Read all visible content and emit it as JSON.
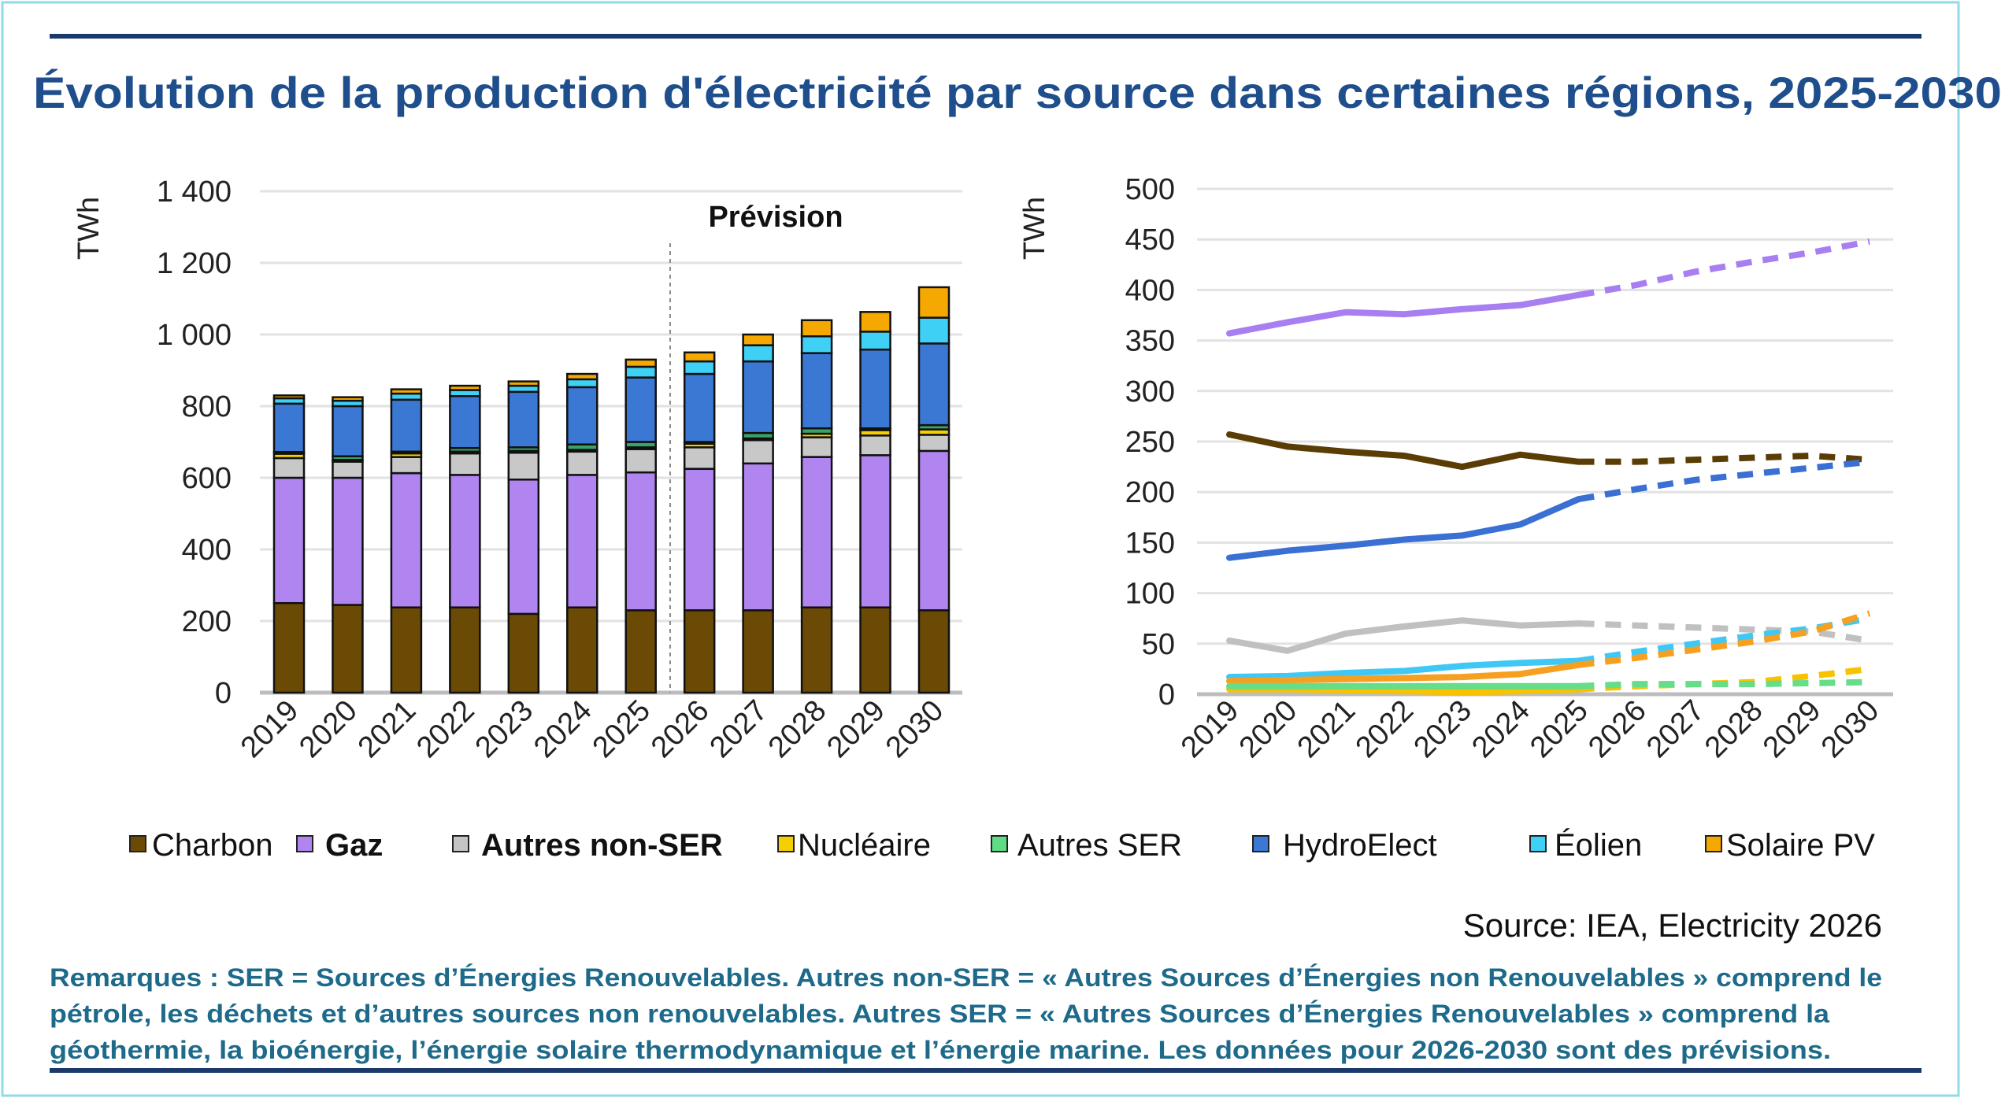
{
  "title": "Évolution de la production d'électricité par source dans certaines régions, 2025-2030",
  "forecast_label": "Prévision",
  "source": "Source: IEA, Electricity 2026",
  "notes": [
    "Remarques : SER = Sources d’Énergies Renouvelables. Autres non-SER = « Autres Sources d’Énergies non Renouvelables » comprend le",
    "pétrole, les déchets et d’autres sources non renouvelables. Autres SER = « Autres Sources d’Énergies Renouvelables » comprend la",
    "géothermie, la bioénergie, l’énergie solaire thermodynamique et l’énergie marine. Les données pour 2026-2030  sont des prévisions."
  ],
  "legend": [
    {
      "key": "charbon",
      "label": "Charbon",
      "color": "#6b4a05"
    },
    {
      "key": "gaz",
      "label": "Gaz",
      "color": "#b085f0"
    },
    {
      "key": "autres_non_ser",
      "label": "Autres non-SER",
      "color": "#c4c4c4"
    },
    {
      "key": "nucleaire",
      "label": "Nucléaire",
      "color": "#f5d000"
    },
    {
      "key": "autres_ser",
      "label": "Autres SER",
      "color": "#5fdc86"
    },
    {
      "key": "hydro",
      "label": "HydroElect",
      "color": "#3a78d4"
    },
    {
      "key": "eolien",
      "label": "Éolien",
      "color": "#3fd0f5"
    },
    {
      "key": "solaire",
      "label": "Solaire PV",
      "color": "#f5a800"
    }
  ],
  "chart_data": [
    {
      "type": "bar",
      "stacked": true,
      "ylabel": "TWh",
      "ylim": [
        0,
        1400
      ],
      "yticks": [
        "0",
        "200",
        "400",
        "600",
        "800",
        "1 000",
        "1 200",
        "1 400"
      ],
      "ytick_values": [
        0,
        200,
        400,
        600,
        800,
        1000,
        1200,
        1400
      ],
      "categories": [
        "2019",
        "2020",
        "2021",
        "2022",
        "2023",
        "2024",
        "2025",
        "2026",
        "2027",
        "2028",
        "2029",
        "2030"
      ],
      "forecast_start": "2026",
      "series": [
        {
          "name": "Charbon",
          "key": "charbon",
          "color": "#6b4a05",
          "values": [
            250,
            245,
            238,
            238,
            220,
            238,
            230,
            230,
            230,
            238,
            238,
            230
          ]
        },
        {
          "name": "Gaz",
          "key": "gaz",
          "color": "#b085f0",
          "values": [
            350,
            355,
            375,
            370,
            375,
            370,
            385,
            395,
            410,
            420,
            425,
            445
          ]
        },
        {
          "name": "Autres non-SER",
          "key": "autres_non_ser",
          "color": "#c8c8c8",
          "values": [
            55,
            45,
            45,
            60,
            75,
            65,
            65,
            60,
            65,
            55,
            55,
            45
          ]
        },
        {
          "name": "Nucléaire",
          "key": "nucleaire",
          "color": "#f5d000",
          "values": [
            12,
            5,
            10,
            5,
            5,
            5,
            5,
            10,
            5,
            10,
            15,
            15
          ]
        },
        {
          "name": "Autres SER",
          "key": "autres_ser",
          "color": "#3aa36a",
          "values": [
            5,
            10,
            5,
            10,
            10,
            15,
            15,
            5,
            15,
            15,
            5,
            12
          ]
        },
        {
          "name": "HydroElect",
          "key": "hydro",
          "color": "#3a78d4",
          "values": [
            135,
            140,
            145,
            145,
            155,
            160,
            180,
            190,
            200,
            210,
            220,
            228
          ]
        },
        {
          "name": "Éolien",
          "key": "eolien",
          "color": "#3fd0f5",
          "values": [
            15,
            15,
            17,
            17,
            17,
            22,
            30,
            35,
            45,
            47,
            50,
            72
          ]
        },
        {
          "name": "Solaire PV",
          "key": "solaire",
          "color": "#f5a800",
          "values": [
            8,
            10,
            12,
            12,
            12,
            15,
            20,
            25,
            30,
            45,
            55,
            85
          ]
        }
      ]
    },
    {
      "type": "line",
      "ylabel": "TWh",
      "ylim": [
        0,
        500
      ],
      "yticks": [
        "0",
        "50",
        "100",
        "150",
        "200",
        "250",
        "300",
        "350",
        "400",
        "450",
        "500"
      ],
      "ytick_values": [
        0,
        50,
        100,
        150,
        200,
        250,
        300,
        350,
        400,
        450,
        500
      ],
      "categories": [
        "2019",
        "2020",
        "2021",
        "2022",
        "2023",
        "2024",
        "2025",
        "2026",
        "2027",
        "2028",
        "2029",
        "2030"
      ],
      "forecast_start": "2025",
      "forecast_style": "dashed",
      "series": [
        {
          "name": "Gaz",
          "key": "gaz",
          "color": "#a77ff0",
          "values": [
            357,
            368,
            378,
            376,
            381,
            385,
            395,
            405,
            418,
            428,
            437,
            448
          ]
        },
        {
          "name": "Charbon",
          "key": "charbon",
          "color": "#5a3d05",
          "values": [
            257,
            245,
            240,
            236,
            225,
            237,
            230,
            230,
            232,
            234,
            236,
            232
          ]
        },
        {
          "name": "HydroElect",
          "key": "hydro",
          "color": "#3a6fd4",
          "values": [
            135,
            142,
            147,
            153,
            157,
            168,
            193,
            203,
            212,
            218,
            224,
            230
          ]
        },
        {
          "name": "Autres non-SER",
          "key": "autres_non_ser",
          "color": "#c0c0c0",
          "values": [
            53,
            43,
            60,
            67,
            73,
            68,
            70,
            68,
            66,
            64,
            62,
            53
          ]
        },
        {
          "name": "Éolien",
          "key": "eolien",
          "color": "#3fc8f5",
          "values": [
            17,
            18,
            21,
            23,
            28,
            31,
            33,
            42,
            50,
            58,
            65,
            75
          ]
        },
        {
          "name": "Solaire PV",
          "key": "solaire",
          "color": "#f5a020",
          "values": [
            13,
            14,
            15,
            16,
            17,
            20,
            29,
            36,
            44,
            52,
            62,
            80
          ]
        },
        {
          "name": "Nucléaire",
          "key": "nucleaire",
          "color": "#f7c200",
          "values": [
            5,
            5,
            4,
            3,
            2,
            3,
            5,
            8,
            10,
            12,
            18,
            25
          ]
        },
        {
          "name": "Autres SER",
          "key": "autres_ser",
          "color": "#66dd88",
          "values": [
            8,
            8,
            8,
            8,
            8,
            8,
            8,
            10,
            10,
            10,
            11,
            12
          ]
        }
      ]
    }
  ]
}
